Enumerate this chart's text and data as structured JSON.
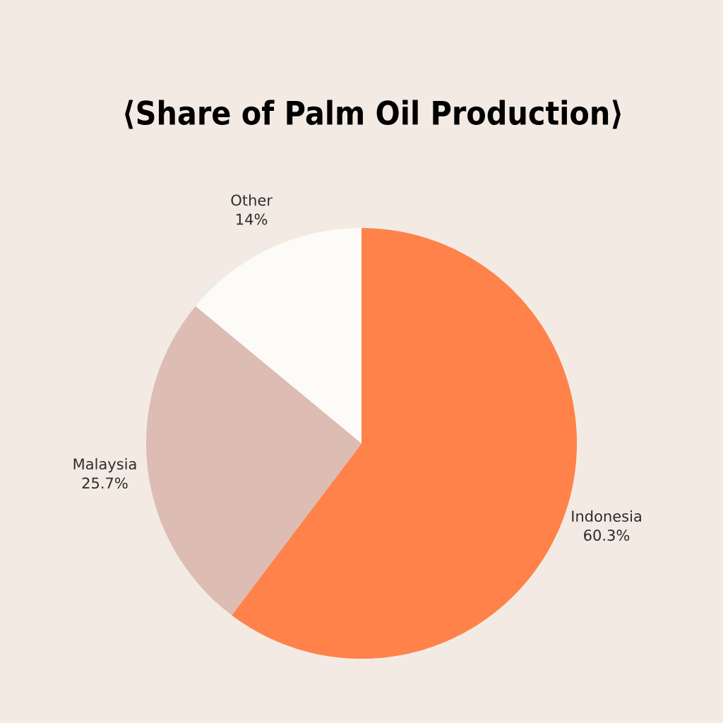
{
  "chart_data": {
    "type": "pie",
    "title": "⟨Share of Palm Oil Production⟩",
    "categories": [
      "Indonesia",
      "Malaysia",
      "Other"
    ],
    "values": [
      60.3,
      25.7,
      14
    ],
    "value_labels": [
      "60.3%",
      "25.7%",
      "14%"
    ],
    "colors": [
      "#ff824a",
      "#ddbcb4",
      "#fcfbf7"
    ]
  }
}
